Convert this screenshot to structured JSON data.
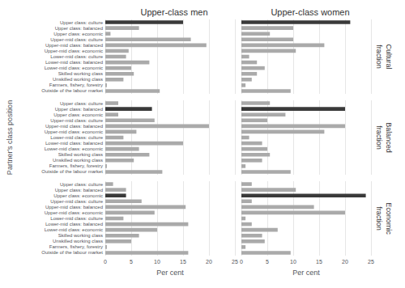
{
  "chart_data": [
    {
      "type": "bar",
      "orientation": "horizontal",
      "title": "Upper-class men",
      "categories": [
        "Upper class: culture",
        "Upper class: balanced",
        "Upper class: economic",
        "Upper-mid class: culture",
        "Upper-mid class: balanced",
        "Upper-mid class: economic",
        "Lower-mid class: culture",
        "Lower-mid class: balanced",
        "Lower-mid class: economic",
        "Skilled working class",
        "Unskilled working class",
        "Farmers, fishery, forestry",
        "Outside of the labour market"
      ],
      "values": [
        15.0,
        6.5,
        1.0,
        16.5,
        19.5,
        4.5,
        4.0,
        8.5,
        5.0,
        5.5,
        3.5,
        0.3,
        10.5
      ],
      "colors": [
        "#3a3a3a",
        "#aaaaaa",
        "#aaaaaa",
        "#aaaaaa",
        "#aaaaaa",
        "#aaaaaa",
        "#aaaaaa",
        "#aaaaaa",
        "#aaaaaa",
        "#aaaaaa",
        "#aaaaaa",
        "#aaaaaa",
        "#aaaaaa"
      ],
      "xlim": [
        0,
        25
      ],
      "xticks": [
        0,
        5,
        10,
        15,
        20,
        25
      ],
      "grid": true,
      "tick_labels": "y"
    },
    {
      "type": "bar",
      "orientation": "horizontal",
      "title": "Upper-class women",
      "annotations": [
        "Cultural\nfraction"
      ],
      "categories": [
        "Upper class: culture",
        "Upper class: balanced",
        "Upper class: economic",
        "Upper-mid class: culture",
        "Upper-mid class: balanced",
        "Upper-mid class: economic",
        "Lower-mid class: culture",
        "Lower-mid class: balanced",
        "Lower-mid class: economic",
        "Skilled working class",
        "Unskilled working class",
        "Farmers, fishery, forestry",
        "Outside of the labour market"
      ],
      "values": [
        21.0,
        10.0,
        5.5,
        10.0,
        16.0,
        10.5,
        1.5,
        3.0,
        4.5,
        3.0,
        2.0,
        0.8,
        9.5
      ],
      "colors": [
        "#3a3a3a",
        "#aaaaaa",
        "#aaaaaa",
        "#aaaaaa",
        "#aaaaaa",
        "#aaaaaa",
        "#aaaaaa",
        "#aaaaaa",
        "#aaaaaa",
        "#aaaaaa",
        "#aaaaaa",
        "#aaaaaa",
        "#aaaaaa"
      ],
      "xlim": [
        0,
        25
      ],
      "xticks": [
        0,
        5,
        10,
        15,
        20,
        25
      ],
      "grid": true,
      "tick_labels": false
    },
    {
      "type": "bar",
      "orientation": "horizontal",
      "ylabel": "Partner's class position",
      "categories": [
        "Upper class: culture",
        "Upper class: balanced",
        "Upper class: economic",
        "Upper-mid class: culture",
        "Upper-mid class: balanced",
        "Upper-mid class: economic",
        "Lower-mid class: culture",
        "Lower-mid class: balanced",
        "Lower-mid class: economic",
        "Skilled working class",
        "Unskilled working class",
        "Farmers, fishery, forestry",
        "Outside of the labour market"
      ],
      "values": [
        2.5,
        9.0,
        2.5,
        9.5,
        20.0,
        6.0,
        3.5,
        15.0,
        6.5,
        8.5,
        5.5,
        0.3,
        11.0
      ],
      "colors": [
        "#aaaaaa",
        "#3a3a3a",
        "#aaaaaa",
        "#aaaaaa",
        "#aaaaaa",
        "#aaaaaa",
        "#aaaaaa",
        "#aaaaaa",
        "#aaaaaa",
        "#aaaaaa",
        "#aaaaaa",
        "#aaaaaa",
        "#aaaaaa"
      ],
      "xlim": [
        0,
        25
      ],
      "xticks": [
        0,
        5,
        10,
        15,
        20,
        25
      ],
      "grid": true,
      "tick_labels": "y"
    },
    {
      "type": "bar",
      "orientation": "horizontal",
      "annotations": [
        "Balanced\nfraction"
      ],
      "categories": [
        "Upper class: culture",
        "Upper class: balanced",
        "Upper class: economic",
        "Upper-mid class: culture",
        "Upper-mid class: balanced",
        "Upper-mid class: economic",
        "Lower-mid class: culture",
        "Lower-mid class: balanced",
        "Lower-mid class: economic",
        "Skilled working class",
        "Unskilled working class",
        "Farmers, fishery, forestry",
        "Outside of the labour market"
      ],
      "values": [
        5.5,
        20.0,
        8.5,
        5.0,
        20.0,
        16.0,
        1.5,
        4.0,
        5.0,
        5.5,
        4.0,
        0.8,
        9.5
      ],
      "colors": [
        "#aaaaaa",
        "#3a3a3a",
        "#aaaaaa",
        "#aaaaaa",
        "#aaaaaa",
        "#aaaaaa",
        "#aaaaaa",
        "#aaaaaa",
        "#aaaaaa",
        "#aaaaaa",
        "#aaaaaa",
        "#aaaaaa",
        "#aaaaaa"
      ],
      "xlim": [
        0,
        25
      ],
      "xticks": [
        0,
        5,
        10,
        15,
        20,
        25
      ],
      "grid": true,
      "tick_labels": false
    },
    {
      "type": "bar",
      "orientation": "horizontal",
      "xlabel": "Per cent",
      "categories": [
        "Upper class: culture",
        "Upper class: balanced",
        "Upper class: economic",
        "Upper-mid class: culture",
        "Upper-mid class: balanced",
        "Upper-mid class: economic",
        "Lower-mid class: culture",
        "Lower-mid class: balanced",
        "Lower-mid class: economic",
        "Skilled working class",
        "Unskilled working class",
        "Farmers, fishery, forestry",
        "Outside of the labour market"
      ],
      "values": [
        1.5,
        4.0,
        4.0,
        7.0,
        15.5,
        9.5,
        3.5,
        16.0,
        10.0,
        6.5,
        5.0,
        0.3,
        16.0
      ],
      "colors": [
        "#aaaaaa",
        "#aaaaaa",
        "#3a3a3a",
        "#aaaaaa",
        "#aaaaaa",
        "#aaaaaa",
        "#aaaaaa",
        "#aaaaaa",
        "#aaaaaa",
        "#aaaaaa",
        "#aaaaaa",
        "#aaaaaa",
        "#aaaaaa"
      ],
      "xlim": [
        0,
        25
      ],
      "xticks": [
        0,
        5,
        10,
        15,
        20,
        25
      ],
      "grid": true
    },
    {
      "type": "bar",
      "orientation": "horizontal",
      "xlabel": "Per cent",
      "annotations": [
        "Economic\nfraction"
      ],
      "categories": [
        "Upper class: culture",
        "Upper class: balanced",
        "Upper class: economic",
        "Upper-mid class: culture",
        "Upper-mid class: balanced",
        "Upper-mid class: economic",
        "Lower-mid class: culture",
        "Lower-mid class: balanced",
        "Lower-mid class: economic",
        "Skilled working class",
        "Unskilled working class",
        "Farmers, fishery, forestry",
        "Outside of the labour market"
      ],
      "values": [
        2.0,
        10.5,
        24.0,
        2.0,
        14.0,
        20.0,
        0.8,
        2.0,
        7.0,
        4.0,
        4.5,
        0.8,
        9.5
      ],
      "colors": [
        "#aaaaaa",
        "#aaaaaa",
        "#3a3a3a",
        "#aaaaaa",
        "#aaaaaa",
        "#aaaaaa",
        "#aaaaaa",
        "#aaaaaa",
        "#aaaaaa",
        "#aaaaaa",
        "#aaaaaa",
        "#aaaaaa",
        "#aaaaaa"
      ],
      "xlim": [
        0,
        25
      ],
      "xticks": [
        0,
        5,
        10,
        15,
        20,
        25
      ],
      "grid": true,
      "tick_labels": "x"
    }
  ]
}
